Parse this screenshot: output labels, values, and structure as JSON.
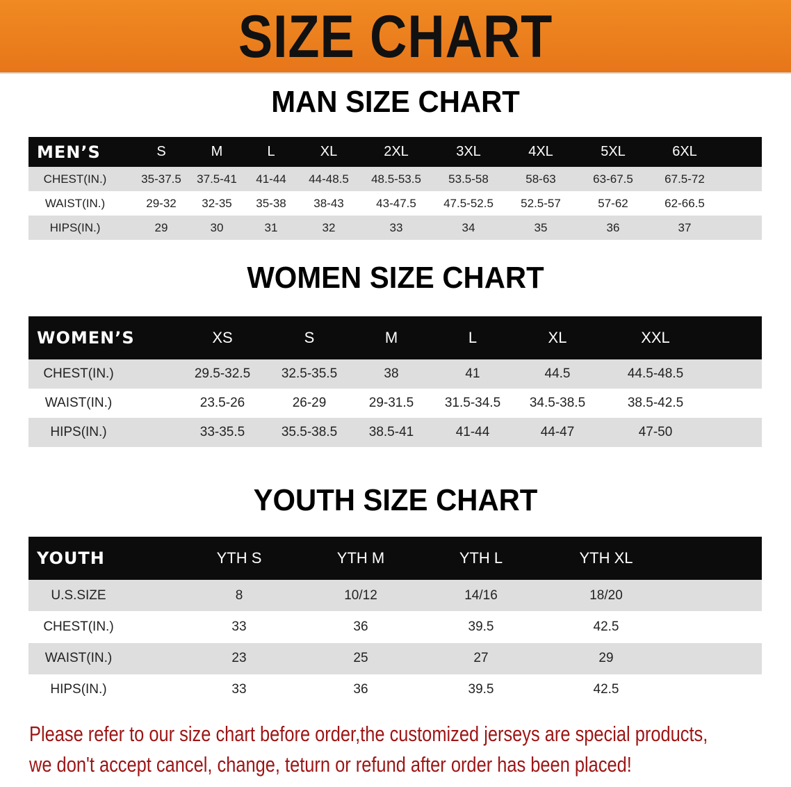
{
  "banner": {
    "title": "SIZE CHART",
    "color": "#ec801f"
  },
  "men": {
    "title": "MAN SIZE CHART",
    "header": "MEN’S",
    "sizes": [
      "S",
      "M",
      "L",
      "XL",
      "2XL",
      "3XL",
      "4XL",
      "5XL",
      "6XL"
    ],
    "rows": [
      {
        "label": "CHEST(IN.)",
        "values": [
          "35-37.5",
          "37.5-41",
          "41-44",
          "44-48.5",
          "48.5-53.5",
          "53.5-58",
          "58-63",
          "63-67.5",
          "67.5-72"
        ]
      },
      {
        "label": "WAIST(IN.)",
        "values": [
          "29-32",
          "32-35",
          "35-38",
          "38-43",
          "43-47.5",
          "47.5-52.5",
          "52.5-57",
          "57-62",
          "62-66.5"
        ]
      },
      {
        "label": "HIPS(IN.)",
        "values": [
          "29",
          "30",
          "31",
          "32",
          "33",
          "34",
          "35",
          "36",
          "37"
        ]
      }
    ]
  },
  "women": {
    "title": "WOMEN SIZE CHART",
    "header": "WOMEN’S",
    "sizes": [
      "XS",
      "S",
      "M",
      "L",
      "XL",
      "XXL"
    ],
    "rows": [
      {
        "label": "CHEST(IN.)",
        "values": [
          "29.5-32.5",
          "32.5-35.5",
          "38",
          "41",
          "44.5",
          "44.5-48.5"
        ]
      },
      {
        "label": "WAIST(IN.)",
        "values": [
          "23.5-26",
          "26-29",
          "29-31.5",
          "31.5-34.5",
          "34.5-38.5",
          "38.5-42.5"
        ]
      },
      {
        "label": "HIPS(IN.)",
        "values": [
          "33-35.5",
          "35.5-38.5",
          "38.5-41",
          "41-44",
          "44-47",
          "47-50"
        ]
      }
    ]
  },
  "youth": {
    "title": "YOUTH SIZE CHART",
    "header": "YOUTH",
    "sizes": [
      "YTH S",
      "YTH M",
      "YTH L",
      "YTH XL"
    ],
    "rows": [
      {
        "label": "U.S.SIZE",
        "values": [
          "8",
          "10/12",
          "14/16",
          "18/20"
        ]
      },
      {
        "label": "CHEST(IN.)",
        "values": [
          "33",
          "36",
          "39.5",
          "42.5"
        ]
      },
      {
        "label": "WAIST(IN.)",
        "values": [
          "23",
          "25",
          "27",
          "29"
        ]
      },
      {
        "label": "HIPS(IN.)",
        "values": [
          "33",
          "36",
          "39.5",
          "42.5"
        ]
      }
    ]
  },
  "note": {
    "line1": "Please refer to our size chart before order,the customized jerseys are special products,",
    "line2": "we don't accept cancel, change, teturn or refund after order has been placed!",
    "color": "#9d1515"
  }
}
